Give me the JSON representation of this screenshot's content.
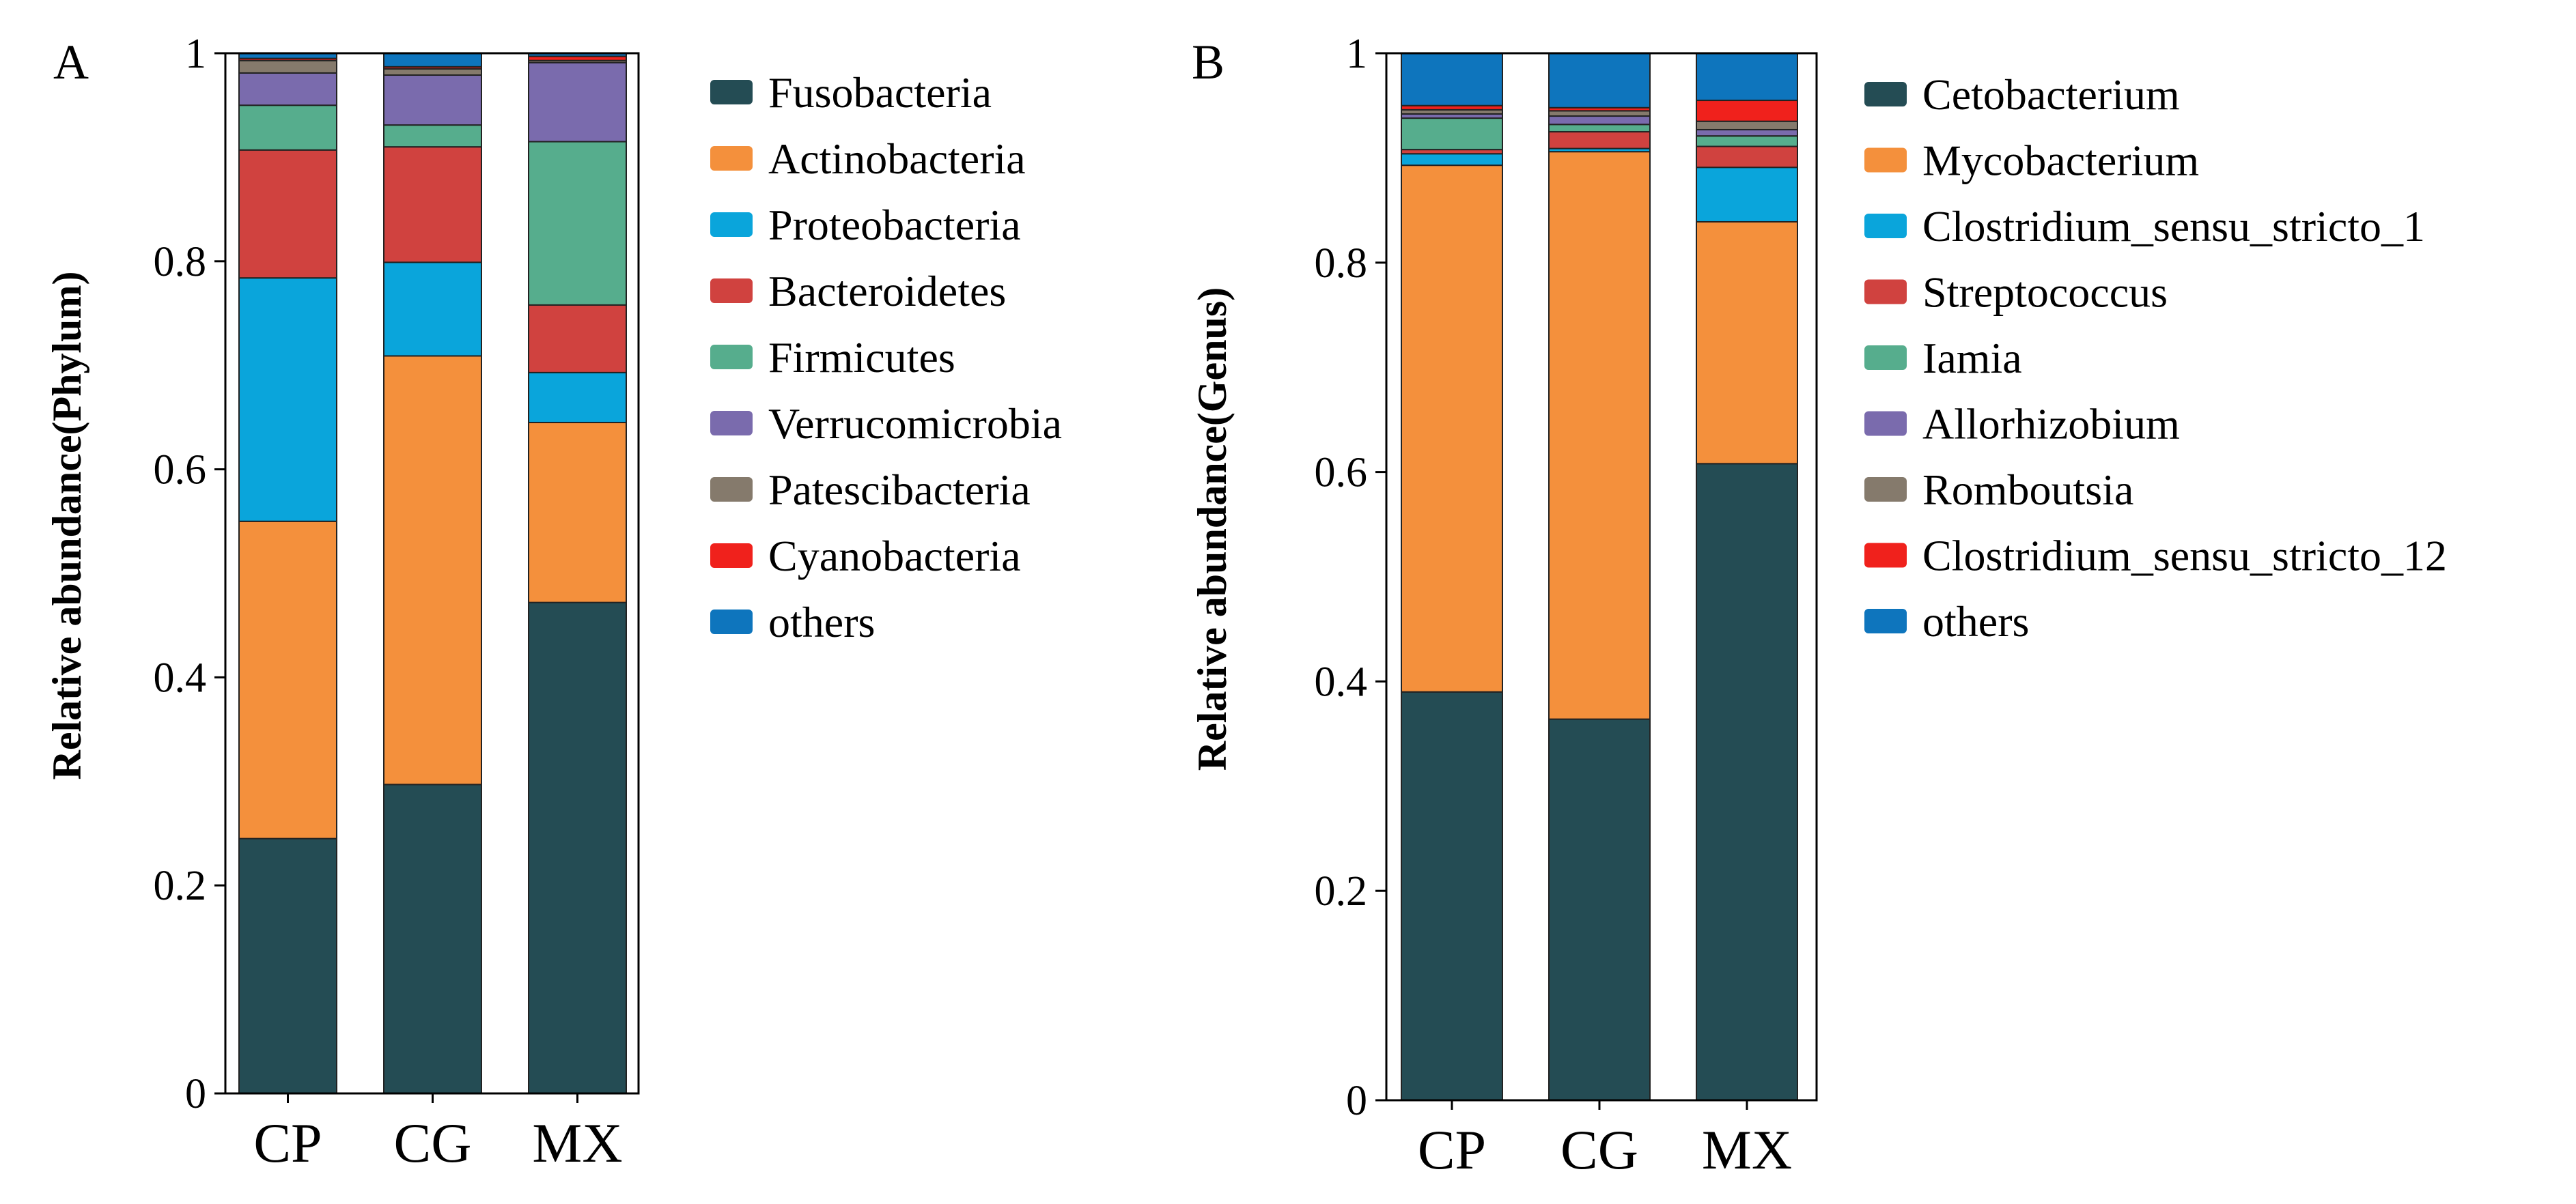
{
  "chart_data": [
    {
      "type": "bar",
      "stacked": true,
      "panel_label": "A",
      "ylabel": "Relative abundance(Phylum)",
      "ylim": [
        0,
        1
      ],
      "yticks": [
        "0",
        "0.2",
        "0.4",
        "0.6",
        "0.8",
        "1"
      ],
      "categories": [
        "CP",
        "CG",
        "MX"
      ],
      "legend_position": "right",
      "series": [
        {
          "name": "Fusobacteria",
          "color": "#244C54",
          "values": [
            0.245,
            0.297,
            0.472
          ]
        },
        {
          "name": "Actinobacteria",
          "color": "#F4903C",
          "values": [
            0.305,
            0.412,
            0.173
          ]
        },
        {
          "name": "Proteobacteria",
          "color": "#0AA5DB",
          "values": [
            0.234,
            0.09,
            0.048
          ]
        },
        {
          "name": "Bacteroidetes",
          "color": "#D0423F",
          "values": [
            0.123,
            0.111,
            0.065
          ]
        },
        {
          "name": "Firmicutes",
          "color": "#56AD8D",
          "values": [
            0.043,
            0.021,
            0.157
          ]
        },
        {
          "name": "Verrucomicrobia",
          "color": "#7A6BAD",
          "values": [
            0.031,
            0.048,
            0.076
          ]
        },
        {
          "name": "Patescibacteria",
          "color": "#857A6C",
          "values": [
            0.012,
            0.006,
            0.002
          ]
        },
        {
          "name": "Cyanobacteria",
          "color": "#F0211C",
          "values": [
            0.002,
            0.002,
            0.004
          ]
        },
        {
          "name": "others",
          "color": "#0E75BD",
          "values": [
            0.005,
            0.013,
            0.003
          ]
        }
      ]
    },
    {
      "type": "bar",
      "stacked": true,
      "panel_label": "B",
      "ylabel": "Relative abundance(Genus)",
      "ylim": [
        0,
        1
      ],
      "yticks": [
        "0",
        "0.2",
        "0.4",
        "0.6",
        "0.8",
        "1"
      ],
      "categories": [
        "CP",
        "CG",
        "MX"
      ],
      "legend_position": "right",
      "series": [
        {
          "name": "Cetobacterium",
          "color": "#244C54",
          "values": [
            0.39,
            0.364,
            0.608
          ]
        },
        {
          "name": "Mycobacterium",
          "color": "#F4903C",
          "values": [
            0.503,
            0.542,
            0.231
          ]
        },
        {
          "name": "Clostridium_sensu_stricto_1",
          "color": "#0AA5DB",
          "values": [
            0.011,
            0.003,
            0.052
          ]
        },
        {
          "name": "Streptococcus",
          "color": "#D0423F",
          "values": [
            0.004,
            0.016,
            0.02
          ]
        },
        {
          "name": "Iamia",
          "color": "#56AD8D",
          "values": [
            0.03,
            0.007,
            0.01
          ]
        },
        {
          "name": "Allorhizobium",
          "color": "#7A6BAD",
          "values": [
            0.004,
            0.008,
            0.006
          ]
        },
        {
          "name": "Romboutsia",
          "color": "#857A6C",
          "values": [
            0.004,
            0.005,
            0.008
          ]
        },
        {
          "name": "Clostridium_sensu_stricto_12",
          "color": "#F0211C",
          "values": [
            0.004,
            0.003,
            0.02
          ]
        },
        {
          "name": "others",
          "color": "#0E75BD",
          "values": [
            0.05,
            0.052,
            0.045
          ]
        }
      ]
    }
  ]
}
